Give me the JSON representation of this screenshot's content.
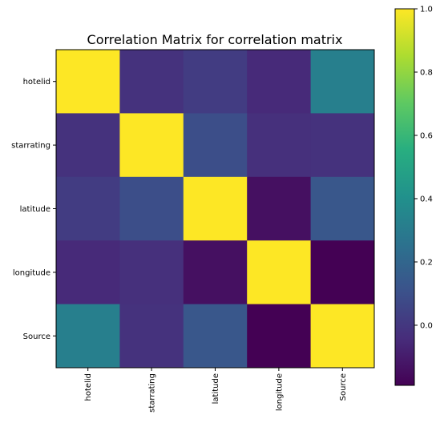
{
  "chart_data": {
    "type": "heatmap",
    "title": "Correlation Matrix for correlation matrix",
    "row_labels": [
      "hotelid",
      "starrating",
      "latitude",
      "longitude",
      "Source"
    ],
    "col_labels": [
      "hotelid",
      "starrating",
      "latitude",
      "longitude",
      "Source"
    ],
    "values": [
      [
        1.0,
        -0.02,
        0.02,
        -0.05,
        0.32
      ],
      [
        -0.02,
        1.0,
        0.09,
        -0.03,
        -0.02
      ],
      [
        0.02,
        0.09,
        1.0,
        -0.14,
        0.13
      ],
      [
        -0.05,
        -0.03,
        -0.14,
        1.0,
        -0.19
      ],
      [
        0.32,
        -0.02,
        0.13,
        -0.19,
        1.0
      ]
    ],
    "colormap": "viridis",
    "color_range": [
      -0.19,
      1.0
    ],
    "colorbar_ticks": [
      {
        "value": 1.0,
        "label": "1.0"
      },
      {
        "value": 0.8,
        "label": "0.8"
      },
      {
        "value": 0.6,
        "label": "0.6"
      },
      {
        "value": 0.4,
        "label": "0.4"
      },
      {
        "value": 0.2,
        "label": "0.2"
      },
      {
        "value": 0.0,
        "label": "0.0"
      }
    ],
    "grid": false
  }
}
